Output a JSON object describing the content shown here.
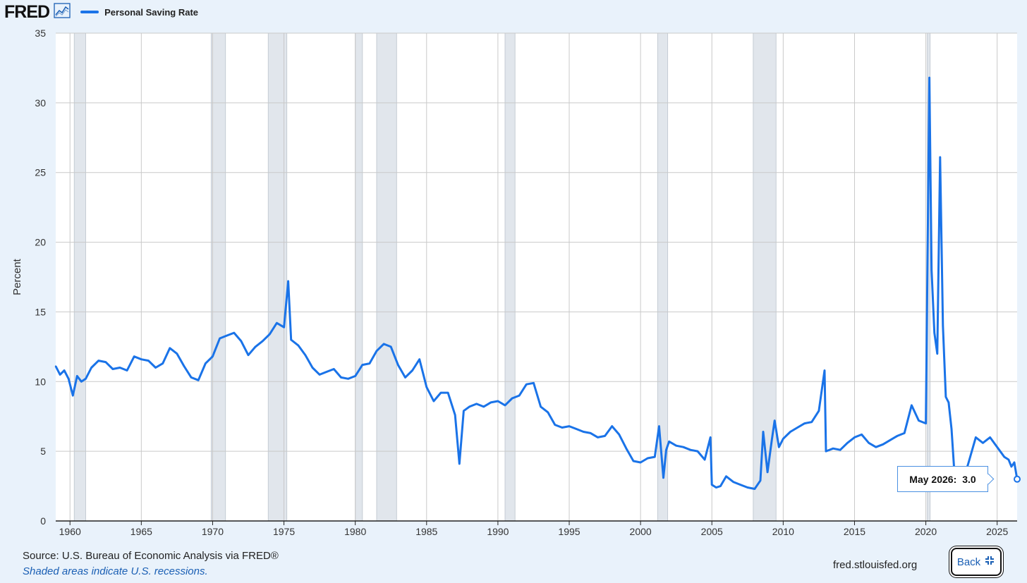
{
  "header": {
    "logo_text": "FRED",
    "chart_icon": "line-chart-icon",
    "legend_label": "Personal Saving Rate",
    "legend_color": "#1a73e8"
  },
  "footer": {
    "source": "Source: U.S. Bureau of Economic Analysis via FRED®",
    "note": "Shaded areas indicate U.S. recessions.",
    "url": "fred.stlouisfed.org",
    "back_label": "Back",
    "back_icon": "collapse-icon"
  },
  "tooltip": {
    "label": "May 2026:",
    "value": "3.0"
  },
  "chart_data": {
    "type": "line",
    "title": "",
    "ylabel": "Percent",
    "xlabel": "",
    "xlim": [
      1959.0,
      2026.4
    ],
    "ylim": [
      0,
      35
    ],
    "yticks": [
      0,
      5,
      10,
      15,
      20,
      25,
      30,
      35
    ],
    "xticks": [
      1960,
      1965,
      1970,
      1975,
      1980,
      1985,
      1990,
      1995,
      2000,
      2005,
      2010,
      2015,
      2020,
      2025
    ],
    "grid": true,
    "legend_position": "top-left",
    "line_color": "#1a73e8",
    "recession_color": "#e1e6ec",
    "recessions": [
      [
        1960.3,
        1961.1
      ],
      [
        1969.9,
        1970.9
      ],
      [
        1973.9,
        1975.2
      ],
      [
        1980.0,
        1980.5
      ],
      [
        1981.5,
        1982.9
      ],
      [
        1990.5,
        1991.2
      ],
      [
        2001.2,
        2001.9
      ],
      [
        2007.9,
        2009.5
      ],
      [
        2020.1,
        2020.3
      ]
    ],
    "series": [
      {
        "name": "Personal Saving Rate",
        "x": [
          1959.0,
          1959.3,
          1959.6,
          1959.9,
          1960.2,
          1960.5,
          1960.8,
          1961.1,
          1961.5,
          1962.0,
          1962.5,
          1963.0,
          1963.5,
          1964.0,
          1964.5,
          1965.0,
          1965.5,
          1966.0,
          1966.5,
          1967.0,
          1967.5,
          1968.0,
          1968.5,
          1969.0,
          1969.5,
          1970.0,
          1970.5,
          1971.0,
          1971.5,
          1972.0,
          1972.5,
          1973.0,
          1973.5,
          1974.0,
          1974.5,
          1975.0,
          1975.3,
          1975.5,
          1976.0,
          1976.5,
          1977.0,
          1977.5,
          1978.0,
          1978.5,
          1979.0,
          1979.5,
          1980.0,
          1980.5,
          1981.0,
          1981.5,
          1982.0,
          1982.5,
          1983.0,
          1983.5,
          1984.0,
          1984.5,
          1985.0,
          1985.5,
          1986.0,
          1986.5,
          1987.0,
          1987.3,
          1987.6,
          1988.0,
          1988.5,
          1989.0,
          1989.5,
          1990.0,
          1990.5,
          1991.0,
          1991.5,
          1992.0,
          1992.5,
          1993.0,
          1993.5,
          1994.0,
          1994.5,
          1995.0,
          1995.5,
          1996.0,
          1996.5,
          1997.0,
          1997.5,
          1998.0,
          1998.5,
          1999.0,
          1999.5,
          2000.0,
          2000.5,
          2001.0,
          2001.3,
          2001.6,
          2001.8,
          2002.0,
          2002.5,
          2003.0,
          2003.5,
          2004.0,
          2004.5,
          2004.9,
          2005.0,
          2005.3,
          2005.6,
          2006.0,
          2006.5,
          2007.0,
          2007.5,
          2008.0,
          2008.4,
          2008.6,
          2008.9,
          2009.2,
          2009.4,
          2009.7,
          2010.0,
          2010.5,
          2011.0,
          2011.5,
          2012.0,
          2012.5,
          2012.9,
          2013.0,
          2013.5,
          2014.0,
          2014.5,
          2015.0,
          2015.5,
          2016.0,
          2016.5,
          2017.0,
          2017.5,
          2018.0,
          2018.5,
          2019.0,
          2019.5,
          2020.0,
          2020.25,
          2020.4,
          2020.6,
          2020.8,
          2021.0,
          2021.2,
          2021.4,
          2021.6,
          2021.8,
          2022.0,
          2022.5,
          2023.0,
          2023.5,
          2024.0,
          2024.5,
          2025.0,
          2025.5,
          2025.8,
          2026.0,
          2026.2,
          2026.4
        ],
        "values": [
          11.1,
          10.5,
          10.8,
          10.2,
          9.0,
          10.4,
          10.0,
          10.2,
          11.0,
          11.5,
          11.4,
          10.9,
          11.0,
          10.8,
          11.8,
          11.6,
          11.5,
          11.0,
          11.3,
          12.4,
          12.0,
          11.1,
          10.3,
          10.1,
          11.3,
          11.8,
          13.1,
          13.3,
          13.5,
          12.9,
          11.9,
          12.5,
          12.9,
          13.4,
          14.2,
          13.9,
          17.2,
          13.0,
          12.6,
          11.9,
          11.0,
          10.5,
          10.7,
          10.9,
          10.3,
          10.2,
          10.4,
          11.2,
          11.3,
          12.2,
          12.7,
          12.5,
          11.2,
          10.3,
          10.8,
          11.6,
          9.6,
          8.6,
          9.2,
          9.2,
          7.6,
          4.1,
          7.9,
          8.2,
          8.4,
          8.2,
          8.5,
          8.6,
          8.3,
          8.8,
          9.0,
          9.8,
          9.9,
          8.2,
          7.8,
          6.9,
          6.7,
          6.8,
          6.6,
          6.4,
          6.3,
          6.0,
          6.1,
          6.8,
          6.2,
          5.2,
          4.3,
          4.2,
          4.5,
          4.6,
          6.8,
          3.1,
          5.1,
          5.7,
          5.4,
          5.3,
          5.1,
          5.0,
          4.4,
          6.0,
          2.6,
          2.4,
          2.5,
          3.2,
          2.8,
          2.6,
          2.4,
          2.3,
          2.9,
          6.4,
          3.5,
          5.8,
          7.2,
          5.3,
          5.9,
          6.4,
          6.7,
          7.0,
          7.1,
          7.9,
          10.8,
          5.0,
          5.2,
          5.1,
          5.6,
          6.0,
          6.2,
          5.6,
          5.3,
          5.5,
          5.8,
          6.1,
          6.3,
          8.3,
          7.2,
          7.0,
          31.8,
          18.0,
          13.5,
          12.0,
          26.1,
          14.0,
          8.9,
          8.5,
          6.6,
          3.5,
          2.5,
          4.2,
          6.0,
          5.6,
          6.0,
          5.3,
          4.6,
          4.4,
          3.9,
          4.2,
          3.0
        ]
      }
    ]
  }
}
